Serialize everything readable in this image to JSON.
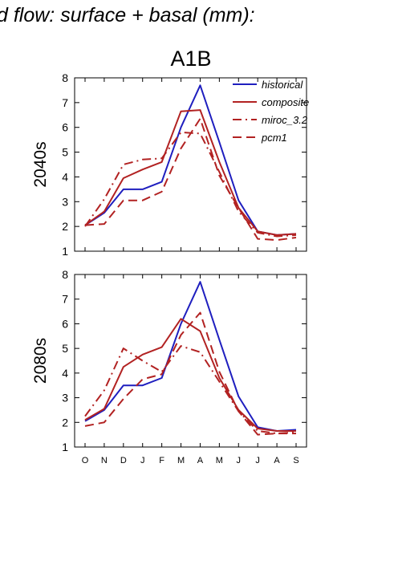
{
  "header": {
    "title": "d flow: surface + basal (mm):",
    "scenario": "A1B"
  },
  "chart_data": [
    {
      "type": "line",
      "panel_label": "2040s",
      "categories": [
        "O",
        "N",
        "D",
        "J",
        "F",
        "M",
        "A",
        "M",
        "J",
        "J",
        "A",
        "S"
      ],
      "ylim": [
        1,
        8
      ],
      "yticks": [
        1,
        2,
        3,
        4,
        5,
        6,
        7,
        8
      ],
      "legend_placement": "top-right",
      "series": [
        {
          "name": "historical",
          "color": "#1f1fbf",
          "dash": "solid",
          "values": [
            2.05,
            2.55,
            3.5,
            3.5,
            3.8,
            6.0,
            7.7,
            5.4,
            3.05,
            1.8,
            1.65,
            1.7
          ]
        },
        {
          "name": "composite",
          "color": "#b22222",
          "dash": "solid",
          "values": [
            2.05,
            2.6,
            3.95,
            4.3,
            4.6,
            6.65,
            6.7,
            4.6,
            2.75,
            1.8,
            1.65,
            1.7
          ]
        },
        {
          "name": "miroc_3.2",
          "color": "#b22222",
          "dash": "dashdot",
          "values": [
            2.0,
            3.1,
            4.5,
            4.7,
            4.75,
            5.8,
            5.75,
            4.2,
            2.6,
            1.75,
            1.6,
            1.65
          ]
        },
        {
          "name": "pcm1",
          "color": "#b22222",
          "dash": "dash",
          "values": [
            2.05,
            2.1,
            3.05,
            3.05,
            3.4,
            5.15,
            6.35,
            4.05,
            2.75,
            1.5,
            1.45,
            1.55
          ]
        }
      ]
    },
    {
      "type": "line",
      "panel_label": "2080s",
      "categories": [
        "O",
        "N",
        "D",
        "J",
        "F",
        "M",
        "A",
        "M",
        "J",
        "J",
        "A",
        "S"
      ],
      "ylim": [
        1,
        8
      ],
      "yticks": [
        1,
        2,
        3,
        4,
        5,
        6,
        7,
        8
      ],
      "series": [
        {
          "name": "historical",
          "color": "#1f1fbf",
          "dash": "solid",
          "values": [
            2.05,
            2.5,
            3.5,
            3.5,
            3.8,
            6.0,
            7.7,
            5.35,
            3.05,
            1.8,
            1.65,
            1.7
          ]
        },
        {
          "name": "composite",
          "color": "#b22222",
          "dash": "solid",
          "values": [
            2.1,
            2.55,
            4.25,
            4.75,
            5.05,
            6.2,
            5.7,
            3.8,
            2.5,
            1.75,
            1.65,
            1.65
          ]
        },
        {
          "name": "miroc_3.2",
          "color": "#b22222",
          "dash": "dashdot",
          "values": [
            2.25,
            3.3,
            5.0,
            4.5,
            4.05,
            5.1,
            4.85,
            3.65,
            2.45,
            1.65,
            1.55,
            1.6
          ]
        },
        {
          "name": "pcm1",
          "color": "#b22222",
          "dash": "dash",
          "values": [
            1.85,
            2.0,
            2.95,
            3.75,
            3.95,
            5.55,
            6.45,
            4.05,
            2.45,
            1.5,
            1.55,
            1.55
          ]
        }
      ]
    }
  ]
}
